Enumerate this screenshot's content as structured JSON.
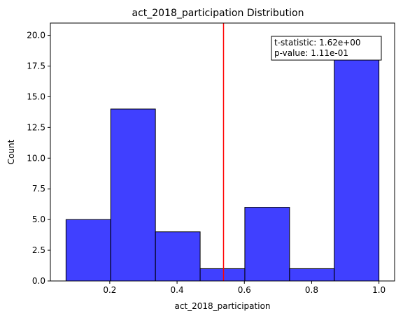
{
  "chart_data": {
    "type": "bar",
    "title": "act_2018_participation Distribution",
    "xlabel": "act_2018_participation",
    "ylabel": "Count",
    "bins": [
      {
        "start": 0.07,
        "end": 0.2029,
        "count": 5
      },
      {
        "start": 0.2029,
        "end": 0.3357,
        "count": 14
      },
      {
        "start": 0.3357,
        "end": 0.4686,
        "count": 4
      },
      {
        "start": 0.4686,
        "end": 0.6014,
        "count": 1
      },
      {
        "start": 0.6014,
        "end": 0.7343,
        "count": 6
      },
      {
        "start": 0.7343,
        "end": 0.8671,
        "count": 1
      },
      {
        "start": 0.8671,
        "end": 1.0,
        "count": 18
      }
    ],
    "vline": 0.5381,
    "xlim": [
      0.0235,
      1.0465
    ],
    "ylim": [
      0,
      21
    ],
    "xticks": [
      0.2,
      0.4,
      0.6,
      0.8,
      1.0
    ],
    "xtick_labels": [
      "0.2",
      "0.4",
      "0.6",
      "0.8",
      "1.0"
    ],
    "yticks": [
      0,
      2.5,
      5,
      7.5,
      10,
      12.5,
      15,
      17.5,
      20
    ],
    "ytick_labels": [
      "0.0",
      "2.5",
      "5.0",
      "7.5",
      "10.0",
      "12.5",
      "15.0",
      "17.5",
      "20.0"
    ],
    "annotation": {
      "line1": "t-statistic:  1.62e+00",
      "line2": "p-value:  1.11e-01"
    },
    "colors": {
      "bar_fill": "#0000ff",
      "bar_opacity": 0.75,
      "bar_edge": "#000000",
      "vline": "#ff0000"
    }
  }
}
